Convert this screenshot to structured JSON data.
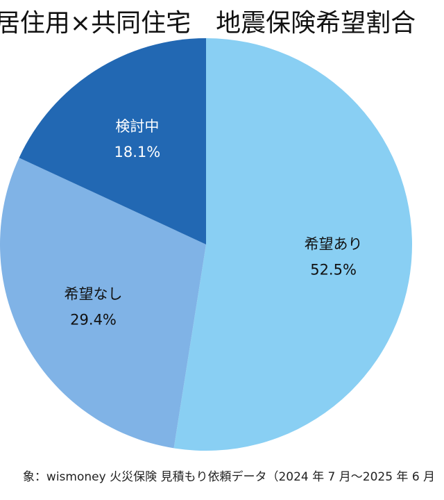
{
  "chart_data": {
    "type": "pie",
    "title": "居住用×共同住宅　地震保険希望割合",
    "slices": [
      {
        "label": "希望あり",
        "value": 52.5,
        "value_text": "52.5%",
        "color": "#89cff3",
        "text_color": "#111111"
      },
      {
        "label": "希望なし",
        "value": 29.4,
        "value_text": "29.4%",
        "color": "#80b3e6",
        "text_color": "#111111"
      },
      {
        "label": "検討中",
        "value": 18.1,
        "value_text": "18.1%",
        "color": "#2268b3",
        "text_color": "#ffffff"
      }
    ],
    "start": "12 o'clock",
    "direction": "clockwise",
    "legend": "none",
    "labels": "inside slices"
  },
  "footnote": "象：wismoney 火災保険 見積もり依頼データ（2024 年 7 月〜2025 年 6 月"
}
